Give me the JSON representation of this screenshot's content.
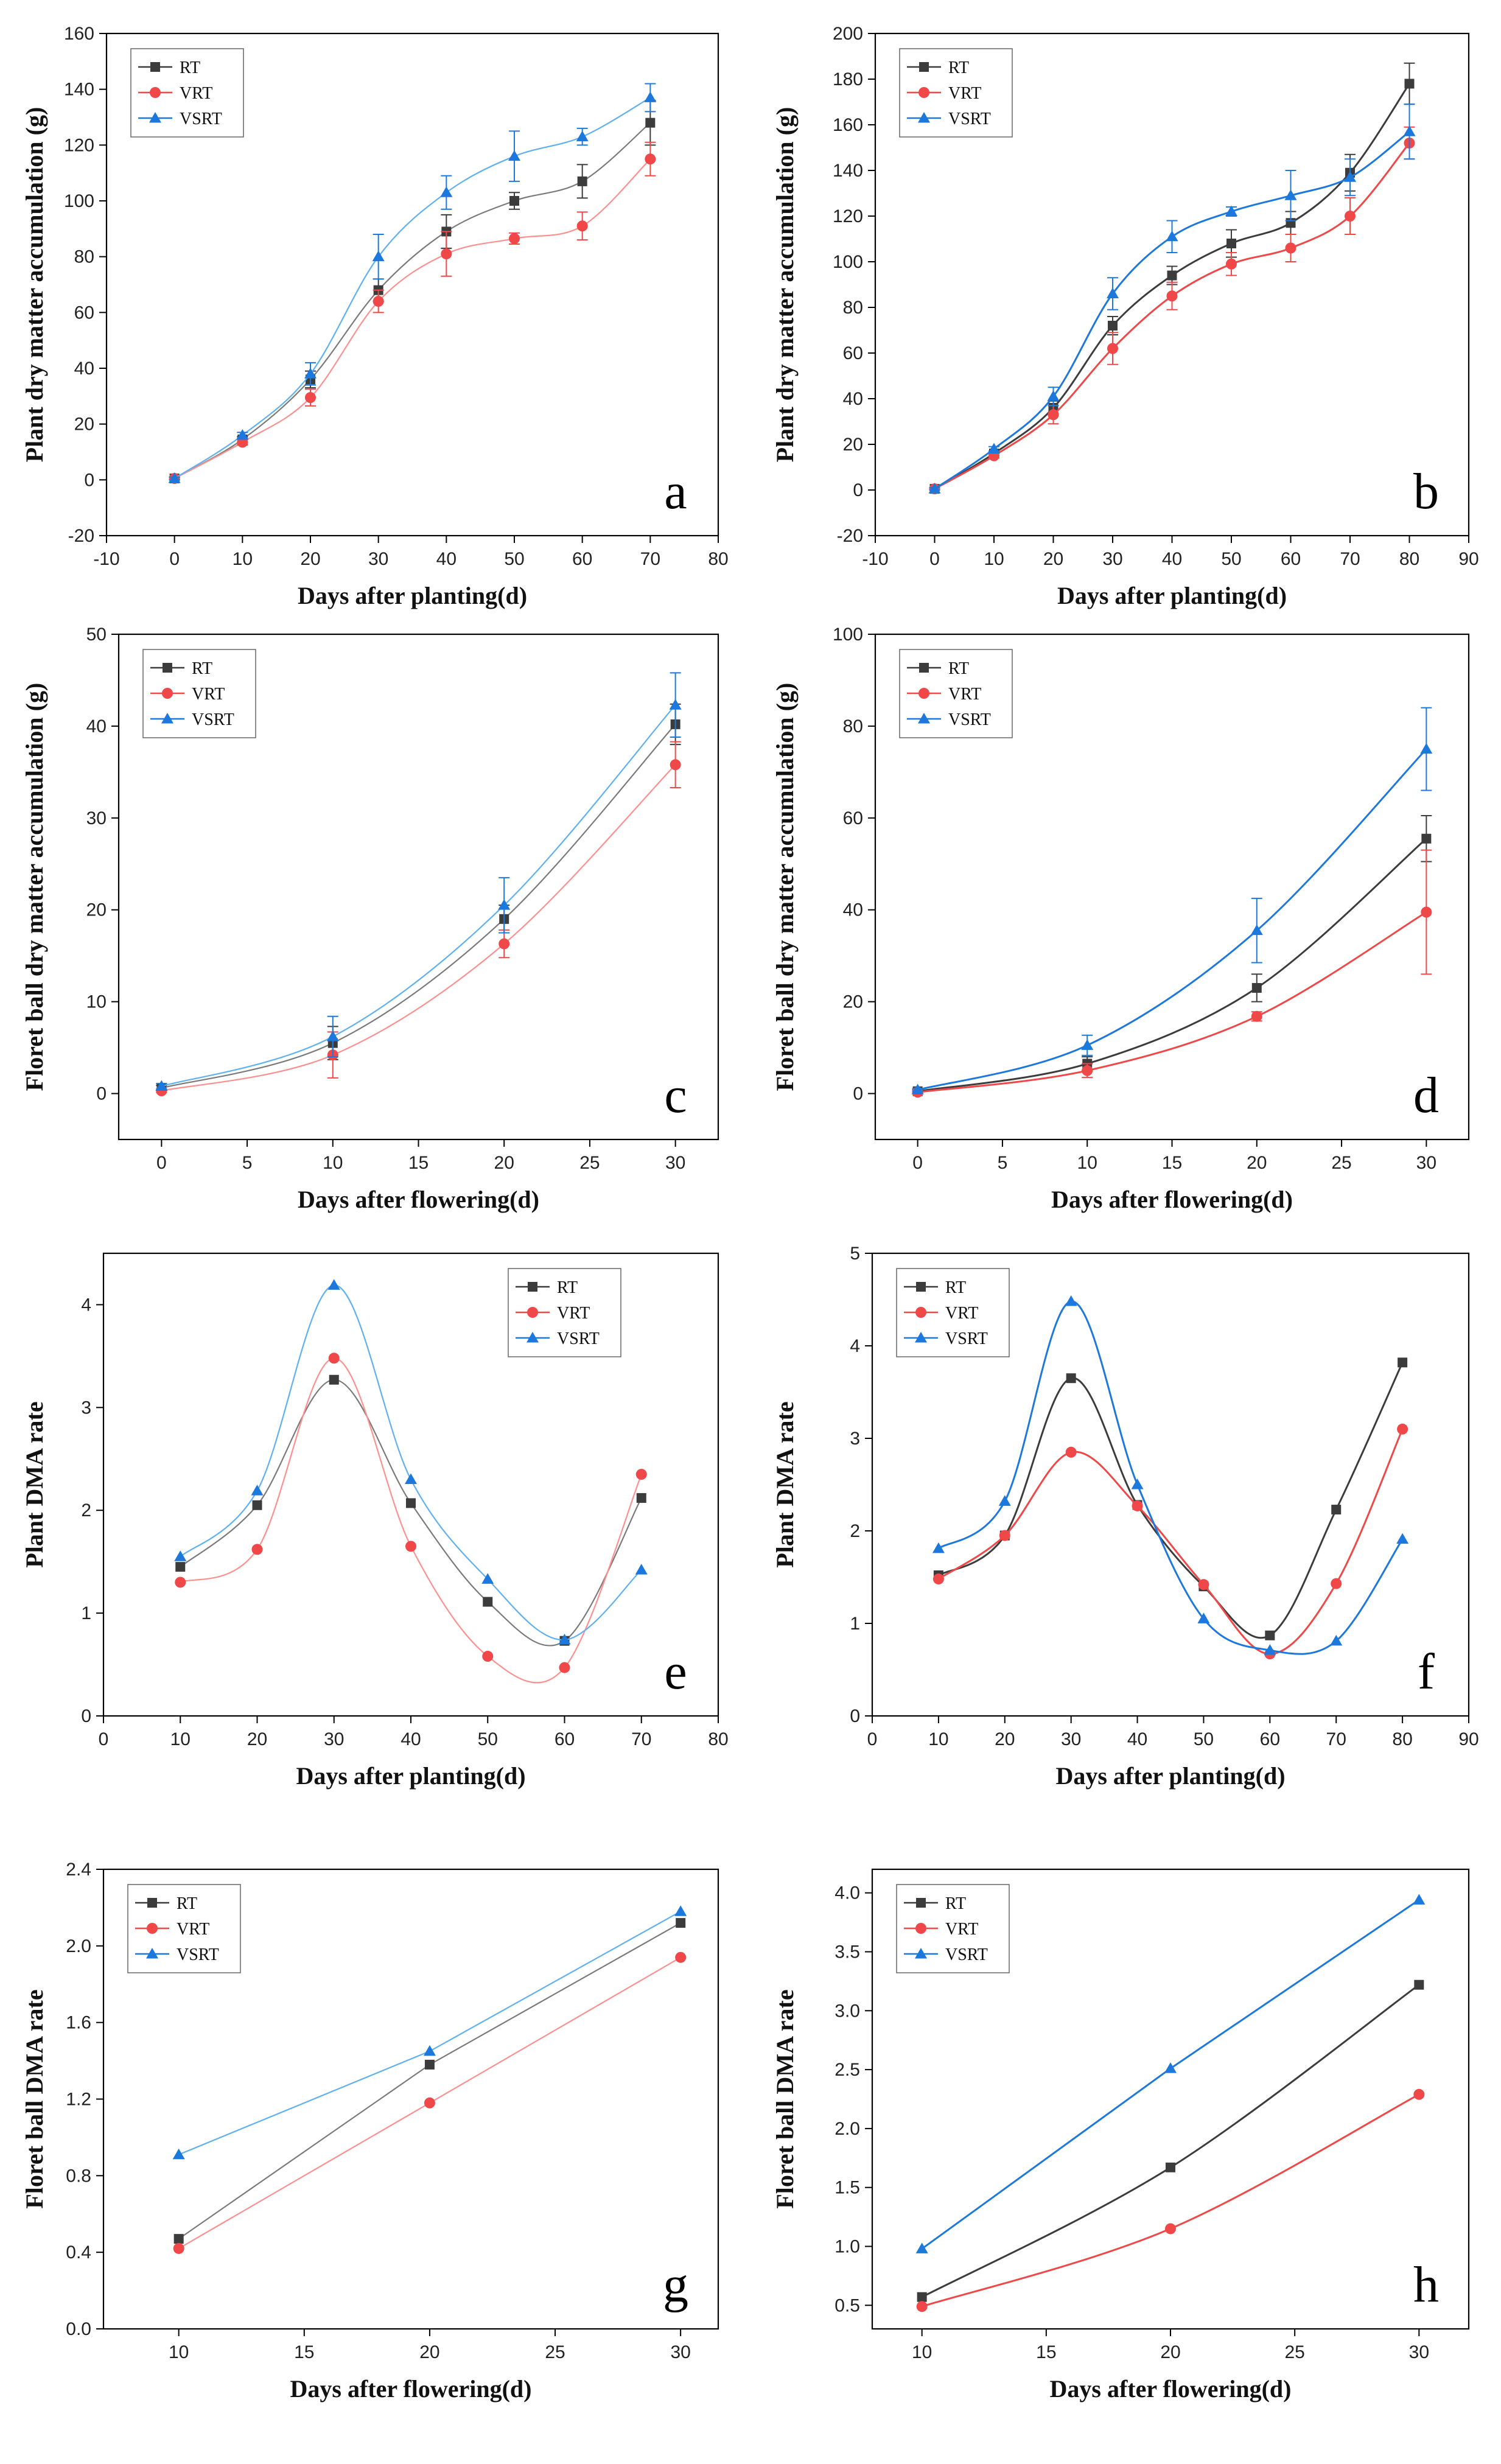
{
  "colors": {
    "RT": "#3c3c3c",
    "VRT": "#f04848",
    "VSRT": "#1c78dc",
    "RT_light": "#7a7a7a",
    "VRT_light": "#ff8f8f",
    "VSRT_light": "#5fb0f0"
  },
  "chart_data": [
    {
      "id": "a",
      "type": "line",
      "panel_label": "a",
      "xlabel": "Days after planting(d)",
      "ylabel": "Plant dry matter accumulation (g)",
      "xlim": [
        -10,
        80
      ],
      "xticks": [
        -10,
        0,
        10,
        20,
        30,
        40,
        50,
        60,
        70,
        80
      ],
      "ylim": [
        -20,
        160
      ],
      "yticks": [
        -20,
        0,
        20,
        40,
        60,
        80,
        100,
        120,
        140,
        160
      ],
      "legend_position": "top-left",
      "x": [
        0,
        10,
        20,
        30,
        40,
        50,
        60,
        70
      ],
      "series": [
        {
          "name": "RT",
          "marker": "square",
          "values": [
            0.5,
            14.5,
            36,
            68,
            89,
            100,
            107,
            128
          ],
          "errors": [
            0.5,
            1,
            3,
            4,
            6,
            3,
            6,
            8
          ]
        },
        {
          "name": "VRT",
          "marker": "circle",
          "values": [
            0.5,
            13.5,
            29.5,
            64,
            81,
            86.5,
            91,
            115
          ],
          "errors": [
            0.5,
            1,
            3,
            4,
            8,
            2,
            5,
            6
          ]
        },
        {
          "name": "VSRT",
          "marker": "triangle",
          "values": [
            0.5,
            16,
            38,
            80,
            103,
            116,
            123,
            137
          ],
          "errors": [
            0.5,
            1,
            4,
            8,
            6,
            9,
            3,
            5
          ]
        }
      ]
    },
    {
      "id": "b",
      "type": "line",
      "panel_label": "b",
      "xlabel": "Days after planting(d)",
      "ylabel": "Plant dry matter accumulation (g)",
      "xlim": [
        -10,
        90
      ],
      "xticks": [
        -10,
        0,
        10,
        20,
        30,
        40,
        50,
        60,
        70,
        80,
        90
      ],
      "ylim": [
        -20,
        200
      ],
      "yticks": [
        -20,
        0,
        20,
        40,
        60,
        80,
        100,
        120,
        140,
        160,
        180,
        200
      ],
      "legend_position": "top-left",
      "x": [
        0,
        10,
        20,
        30,
        40,
        50,
        60,
        70,
        80
      ],
      "series": [
        {
          "name": "RT",
          "marker": "square",
          "values": [
            0.5,
            16,
            36,
            72,
            94,
            108,
            117,
            139,
            178
          ],
          "errors": [
            0.5,
            1,
            3,
            4,
            4,
            6,
            5,
            8,
            9
          ]
        },
        {
          "name": "VRT",
          "marker": "circle",
          "values": [
            0.5,
            15,
            33,
            62,
            85,
            99,
            106,
            120,
            152
          ],
          "errors": [
            0.5,
            1,
            4,
            7,
            6,
            5,
            6,
            8,
            7
          ]
        },
        {
          "name": "VSRT",
          "marker": "triangle",
          "values": [
            0.5,
            18,
            41,
            86,
            111,
            122,
            129,
            137,
            157
          ],
          "errors": [
            0.5,
            1,
            4,
            7,
            7,
            2,
            11,
            8,
            12
          ]
        }
      ]
    },
    {
      "id": "c",
      "type": "line",
      "panel_label": "c",
      "xlabel": "Days after flowering(d)",
      "ylabel": "Floret ball dry matter accumulation (g)",
      "xlim": [
        -2.5,
        32.5
      ],
      "xticks": [
        0,
        5,
        10,
        15,
        20,
        25,
        30
      ],
      "ylim": [
        -5,
        50
      ],
      "yticks": [
        0,
        10,
        20,
        30,
        40,
        50
      ],
      "legend_position": "top-left",
      "x": [
        0,
        10,
        20,
        30
      ],
      "series": [
        {
          "name": "RT",
          "marker": "square",
          "values": [
            0.6,
            5.5,
            19,
            40.2
          ],
          "errors": [
            0.3,
            1.8,
            1.5,
            2.2
          ]
        },
        {
          "name": "VRT",
          "marker": "circle",
          "values": [
            0.3,
            4.2,
            16.3,
            35.8
          ],
          "errors": [
            0.2,
            2.5,
            1.5,
            2.5
          ]
        },
        {
          "name": "VSRT",
          "marker": "triangle",
          "values": [
            0.8,
            6.2,
            20.5,
            42.3
          ],
          "errors": [
            0.3,
            2.2,
            3,
            3.5
          ]
        }
      ]
    },
    {
      "id": "d",
      "type": "line",
      "panel_label": "d",
      "xlabel": "Days after flowering(d)",
      "ylabel": "Floret ball dry matter accumulation (g)",
      "xlim": [
        -2.5,
        32.5
      ],
      "xticks": [
        0,
        5,
        10,
        15,
        20,
        25,
        30
      ],
      "ylim": [
        -10,
        100
      ],
      "yticks": [
        0,
        20,
        40,
        60,
        80,
        100
      ],
      "legend_position": "top-left",
      "x": [
        0,
        10,
        20,
        30
      ],
      "series": [
        {
          "name": "RT",
          "marker": "square",
          "values": [
            0.5,
            6.5,
            23,
            55.5
          ],
          "errors": [
            0.3,
            1.5,
            3,
            5
          ]
        },
        {
          "name": "VRT",
          "marker": "circle",
          "values": [
            0.3,
            5,
            16.8,
            39.5
          ],
          "errors": [
            0.2,
            1.5,
            1,
            13.5
          ]
        },
        {
          "name": "VSRT",
          "marker": "triangle",
          "values": [
            0.8,
            10.5,
            35.5,
            75
          ],
          "errors": [
            0.3,
            2.2,
            7,
            9
          ]
        }
      ]
    },
    {
      "id": "e",
      "type": "line",
      "panel_label": "e",
      "xlabel": "Days after planting(d)",
      "ylabel": "Plant DMA rate",
      "xlim": [
        0,
        80
      ],
      "xticks": [
        0,
        10,
        20,
        30,
        40,
        50,
        60,
        70,
        80
      ],
      "ylim": [
        0,
        4.5
      ],
      "yticks": [
        0,
        1,
        2,
        3,
        4
      ],
      "legend_position": "top-right",
      "x": [
        10,
        20,
        30,
        40,
        50,
        60,
        70
      ],
      "series": [
        {
          "name": "RT",
          "marker": "square",
          "values": [
            1.45,
            2.05,
            3.27,
            2.07,
            1.11,
            0.73,
            2.12
          ]
        },
        {
          "name": "VRT",
          "marker": "circle",
          "values": [
            1.3,
            1.62,
            3.48,
            1.65,
            0.58,
            0.47,
            2.35
          ]
        },
        {
          "name": "VSRT",
          "marker": "triangle",
          "values": [
            1.55,
            2.19,
            4.19,
            2.3,
            1.33,
            0.74,
            1.42
          ]
        }
      ]
    },
    {
      "id": "f",
      "type": "line",
      "panel_label": "f",
      "xlabel": "Days after planting(d)",
      "ylabel": "Plant DMA rate",
      "xlim": [
        0,
        90
      ],
      "xticks": [
        0,
        10,
        20,
        30,
        40,
        50,
        60,
        70,
        80,
        90
      ],
      "ylim": [
        0,
        5
      ],
      "yticks": [
        0,
        1,
        2,
        3,
        4,
        5
      ],
      "legend_position": "top-left",
      "x": [
        10,
        20,
        30,
        40,
        50,
        60,
        70,
        80
      ],
      "series": [
        {
          "name": "RT",
          "marker": "square",
          "values": [
            1.52,
            1.95,
            3.65,
            2.28,
            1.4,
            0.87,
            2.23,
            3.82
          ]
        },
        {
          "name": "VRT",
          "marker": "circle",
          "values": [
            1.48,
            1.95,
            2.85,
            2.27,
            1.42,
            0.67,
            1.43,
            3.1
          ]
        },
        {
          "name": "VSRT",
          "marker": "triangle",
          "values": [
            1.81,
            2.32,
            4.48,
            2.5,
            1.05,
            0.71,
            0.81,
            1.91
          ]
        }
      ]
    },
    {
      "id": "g",
      "type": "line",
      "panel_label": "g",
      "xlabel": "Days after flowering(d)",
      "ylabel": "Floret ball DMA rate",
      "xlim": [
        7,
        31.5
      ],
      "xticks": [
        10,
        15,
        20,
        25,
        30
      ],
      "ylim": [
        0,
        2.4
      ],
      "yticks": [
        0.0,
        0.4,
        0.8,
        1.2,
        1.6,
        2.0,
        2.4
      ],
      "ytick_decimals": 1,
      "legend_position": "top-left",
      "x": [
        10,
        20,
        30
      ],
      "series": [
        {
          "name": "RT",
          "marker": "square",
          "values": [
            0.47,
            1.38,
            2.12
          ]
        },
        {
          "name": "VRT",
          "marker": "circle",
          "values": [
            0.42,
            1.18,
            1.94
          ]
        },
        {
          "name": "VSRT",
          "marker": "triangle",
          "values": [
            0.91,
            1.45,
            2.18
          ]
        }
      ]
    },
    {
      "id": "h",
      "type": "line",
      "panel_label": "h",
      "xlabel": "Days after flowering(d)",
      "ylabel": "Floret ball DMA rate",
      "xlim": [
        8,
        32
      ],
      "xticks": [
        10,
        15,
        20,
        25,
        30
      ],
      "ylim": [
        0.3,
        4.2
      ],
      "yticks": [
        0.5,
        1.0,
        1.5,
        2.0,
        2.5,
        3.0,
        3.5,
        4.0
      ],
      "ytick_decimals": 1,
      "legend_position": "top-left",
      "x": [
        10,
        20,
        30
      ],
      "series": [
        {
          "name": "RT",
          "marker": "square",
          "values": [
            0.57,
            1.67,
            3.22
          ]
        },
        {
          "name": "VRT",
          "marker": "circle",
          "values": [
            0.49,
            1.15,
            2.29
          ]
        },
        {
          "name": "VSRT",
          "marker": "triangle",
          "values": [
            0.98,
            2.51,
            3.94
          ]
        }
      ]
    }
  ]
}
